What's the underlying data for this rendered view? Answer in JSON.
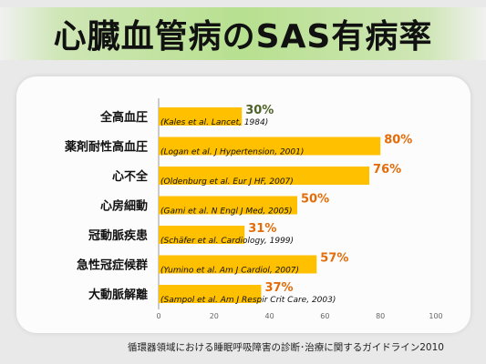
{
  "title": "心臓血管病のSAS有病率",
  "footnote": "循環器領域における睡眠呼吸障害の診断･治療に関するガイドライン2010",
  "colors": {
    "bar": "#ffc000",
    "value_label": "#e36c09",
    "value_label_first": "#4f6228",
    "title_bg": "#b7e08f"
  },
  "chart_data": {
    "type": "bar",
    "orientation": "horizontal",
    "categories": [
      "全高血圧",
      "薬剤耐性高血圧",
      "心不全",
      "心房細動",
      "冠動脈疾患",
      "急性冠症候群",
      "大動脈解離"
    ],
    "values": [
      30,
      80,
      76,
      50,
      31,
      57,
      37
    ],
    "value_labels": [
      "30%",
      "80%",
      "76%",
      "50%",
      "31%",
      "57%",
      "37%"
    ],
    "citations": [
      "(Kales et al. Lancet, 1984)",
      "(Logan et al. J Hypertension, 2001)",
      "(Oldenburg et al. Eur J HF, 2007)",
      "(Gami et al. N Engl J Med, 2005)",
      "(Schäfer et al. Cardiology, 1999)",
      "(Yumino et al. Am J Cardiol, 2007)",
      "(Sampol et al. Am J Respir Crit Care, 2003)"
    ],
    "xticks": [
      0,
      20,
      40,
      60,
      80,
      100
    ],
    "xlim": [
      0,
      100
    ],
    "grid": false,
    "legend": "none"
  }
}
